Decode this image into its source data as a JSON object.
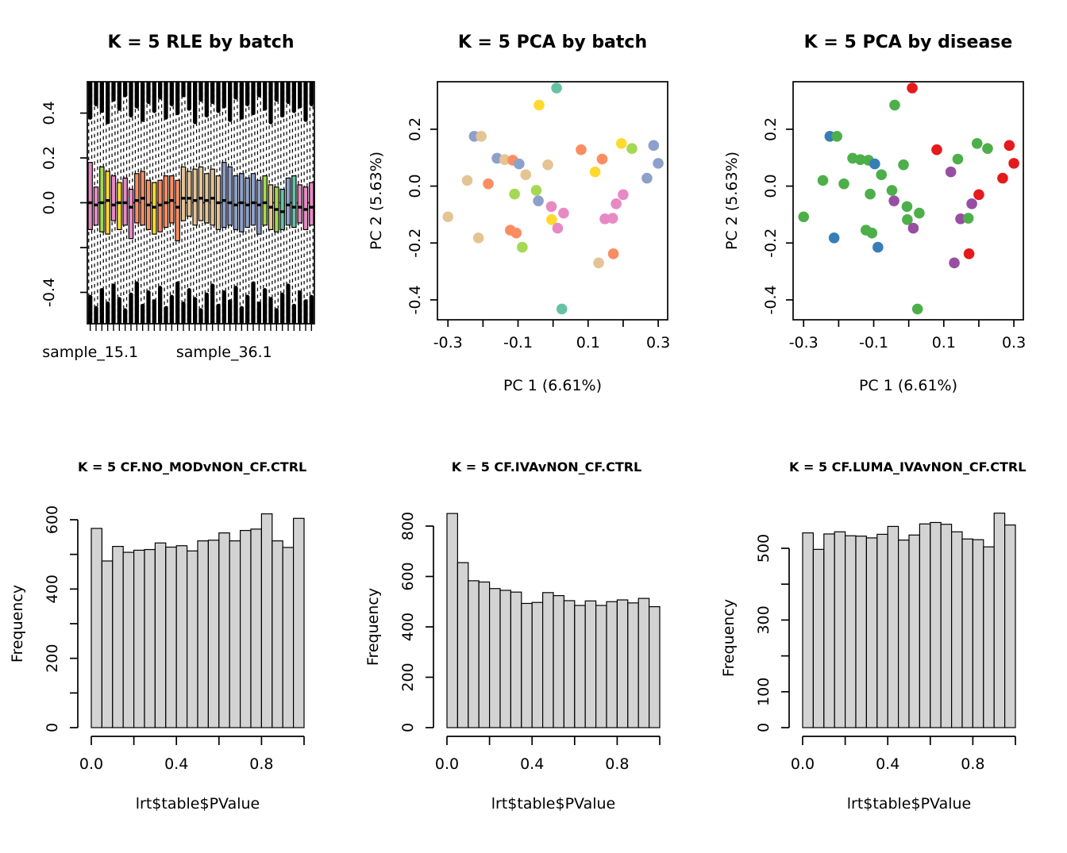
{
  "palette": {
    "set2": {
      "teal": "#66C2A5",
      "orange": "#FC8D62",
      "blue": "#8DA0CB",
      "pink": "#E78AC3",
      "yellowgreen": "#A6D854",
      "yellow": "#FFD92F",
      "tan": "#E5C494"
    },
    "set1": {
      "red": "#E41A1C",
      "blue": "#377EB8",
      "green": "#4DAF4A",
      "purple": "#984EA3"
    },
    "hist_fill": "#D3D3D3",
    "stroke": "#000000",
    "background": "#FFFFFF"
  },
  "pca_points": [
    {
      "x": 0.01,
      "y": 0.345,
      "batch": "teal",
      "disease": "red"
    },
    {
      "x": -0.04,
      "y": 0.285,
      "batch": "yellow",
      "disease": "green"
    },
    {
      "x": -0.225,
      "y": 0.175,
      "batch": "blue",
      "disease": "blue"
    },
    {
      "x": -0.205,
      "y": 0.175,
      "batch": "tan",
      "disease": "green"
    },
    {
      "x": 0.08,
      "y": 0.128,
      "batch": "orange",
      "disease": "red"
    },
    {
      "x": 0.195,
      "y": 0.15,
      "batch": "yellow",
      "disease": "green"
    },
    {
      "x": 0.225,
      "y": 0.132,
      "batch": "yellowgreen",
      "disease": "green"
    },
    {
      "x": 0.287,
      "y": 0.143,
      "batch": "blue",
      "disease": "red"
    },
    {
      "x": -0.16,
      "y": 0.098,
      "batch": "blue",
      "disease": "green"
    },
    {
      "x": -0.138,
      "y": 0.093,
      "batch": "tan",
      "disease": "green"
    },
    {
      "x": -0.115,
      "y": 0.091,
      "batch": "orange",
      "disease": "green"
    },
    {
      "x": -0.097,
      "y": 0.078,
      "batch": "blue",
      "disease": "blue"
    },
    {
      "x": -0.015,
      "y": 0.075,
      "batch": "tan",
      "disease": "green"
    },
    {
      "x": 0.14,
      "y": 0.095,
      "batch": "orange",
      "disease": "green"
    },
    {
      "x": 0.3,
      "y": 0.08,
      "batch": "blue",
      "disease": "red"
    },
    {
      "x": -0.078,
      "y": 0.04,
      "batch": "tan",
      "disease": "green"
    },
    {
      "x": 0.12,
      "y": 0.05,
      "batch": "yellow",
      "disease": "purple"
    },
    {
      "x": 0.268,
      "y": 0.028,
      "batch": "blue",
      "disease": "red"
    },
    {
      "x": -0.245,
      "y": 0.02,
      "batch": "tan",
      "disease": "green"
    },
    {
      "x": -0.185,
      "y": 0.008,
      "batch": "orange",
      "disease": "green"
    },
    {
      "x": -0.11,
      "y": -0.028,
      "batch": "yellowgreen",
      "disease": "green"
    },
    {
      "x": -0.048,
      "y": -0.015,
      "batch": "yellowgreen",
      "disease": "green"
    },
    {
      "x": -0.042,
      "y": -0.052,
      "batch": "blue",
      "disease": "purple"
    },
    {
      "x": 0.2,
      "y": -0.03,
      "batch": "pink",
      "disease": "red"
    },
    {
      "x": -0.005,
      "y": -0.072,
      "batch": "pink",
      "disease": "green"
    },
    {
      "x": 0.18,
      "y": -0.062,
      "batch": "pink",
      "disease": "purple"
    },
    {
      "x": 0.03,
      "y": -0.095,
      "batch": "pink",
      "disease": "green"
    },
    {
      "x": -0.3,
      "y": -0.108,
      "batch": "tan",
      "disease": "green"
    },
    {
      "x": -0.004,
      "y": -0.118,
      "batch": "yellow",
      "disease": "green"
    },
    {
      "x": 0.148,
      "y": -0.115,
      "batch": "pink",
      "disease": "purple"
    },
    {
      "x": 0.17,
      "y": -0.113,
      "batch": "pink",
      "disease": "green"
    },
    {
      "x": 0.013,
      "y": -0.148,
      "batch": "pink",
      "disease": "purple"
    },
    {
      "x": -0.122,
      "y": -0.155,
      "batch": "orange",
      "disease": "green"
    },
    {
      "x": -0.105,
      "y": -0.165,
      "batch": "orange",
      "disease": "green"
    },
    {
      "x": -0.213,
      "y": -0.182,
      "batch": "tan",
      "disease": "blue"
    },
    {
      "x": -0.088,
      "y": -0.215,
      "batch": "yellowgreen",
      "disease": "blue"
    },
    {
      "x": 0.172,
      "y": -0.238,
      "batch": "orange",
      "disease": "red"
    },
    {
      "x": 0.13,
      "y": -0.27,
      "batch": "tan",
      "disease": "purple"
    },
    {
      "x": 0.025,
      "y": -0.432,
      "batch": "teal",
      "disease": "green"
    }
  ],
  "chart_data": [
    {
      "id": "rle_batch",
      "type": "boxplot",
      "title": "K = 5 RLE by batch",
      "ylim": [
        -0.54,
        0.54
      ],
      "hline": 0,
      "yticks": [
        {
          "v": 0.4,
          "label": "0.4"
        },
        {
          "v": 0.2,
          "label": "0.2"
        },
        {
          "v": 0.0,
          "label": "0.0"
        },
        {
          "v": -0.2,
          "label": ""
        },
        {
          "v": -0.4,
          "label": "-0.4"
        }
      ],
      "x_labels": [
        {
          "at": 0,
          "label": "sample_15.1"
        },
        {
          "at": 23,
          "label": "sample_36.1"
        }
      ],
      "boxes": [
        {
          "c": "pink",
          "m": 0.0,
          "q1": -0.12,
          "q3": 0.18,
          "ct": 0.16,
          "cb": 0.12
        },
        {
          "c": "pink",
          "m": -0.01,
          "q1": -0.1,
          "q3": 0.07,
          "ct": 0.1,
          "cb": 0.07
        },
        {
          "c": "yellowgreen",
          "m": 0.0,
          "q1": -0.13,
          "q3": 0.16,
          "ct": 0.13,
          "cb": 0.15
        },
        {
          "c": "yellow",
          "m": 0.01,
          "q1": -0.14,
          "q3": 0.14,
          "ct": 0.18,
          "cb": 0.09
        },
        {
          "c": "pink",
          "m": -0.01,
          "q1": -0.08,
          "q3": 0.12,
          "ct": 0.08,
          "cb": 0.17
        },
        {
          "c": "yellow",
          "m": 0.0,
          "q1": -0.12,
          "q3": 0.09,
          "ct": 0.12,
          "cb": 0.11
        },
        {
          "c": "pink",
          "m": 0.0,
          "q1": -0.1,
          "q3": 0.11,
          "ct": 0.06,
          "cb": 0.06
        },
        {
          "c": "pink",
          "m": -0.02,
          "q1": -0.16,
          "q3": 0.06,
          "ct": 0.15,
          "cb": 0.13
        },
        {
          "c": "orange",
          "m": 0.01,
          "q1": -0.09,
          "q3": 0.13,
          "ct": 0.11,
          "cb": 0.18
        },
        {
          "c": "orange",
          "m": 0.02,
          "q1": -0.1,
          "q3": 0.14,
          "ct": 0.17,
          "cb": 0.08
        },
        {
          "c": "orange",
          "m": -0.01,
          "q1": -0.12,
          "q3": 0.1,
          "ct": 0.09,
          "cb": 0.14
        },
        {
          "c": "yellow",
          "m": -0.02,
          "q1": -0.14,
          "q3": 0.09,
          "ct": 0.13,
          "cb": 0.1
        },
        {
          "c": "orange",
          "m": -0.01,
          "q1": -0.13,
          "q3": 0.1,
          "ct": 0.07,
          "cb": 0.16
        },
        {
          "c": "orange",
          "m": 0.0,
          "q1": -0.11,
          "q3": 0.12,
          "ct": 0.16,
          "cb": 0.07
        },
        {
          "c": "orange",
          "m": 0.01,
          "q1": -0.09,
          "q3": 0.12,
          "ct": 0.1,
          "cb": 0.12
        },
        {
          "c": "orange",
          "m": -0.02,
          "q1": -0.17,
          "q3": 0.1,
          "ct": 0.14,
          "cb": 0.18
        },
        {
          "c": "tan",
          "m": 0.02,
          "q1": -0.08,
          "q3": 0.16,
          "ct": 0.06,
          "cb": 0.09
        },
        {
          "c": "tan",
          "m": 0.02,
          "q1": -0.06,
          "q3": 0.14,
          "ct": 0.12,
          "cb": 0.15
        },
        {
          "c": "tan",
          "m": 0.01,
          "q1": -0.1,
          "q3": 0.15,
          "ct": 0.18,
          "cb": 0.11
        },
        {
          "c": "tan",
          "m": 0.02,
          "q1": -0.08,
          "q3": 0.16,
          "ct": 0.08,
          "cb": 0.06
        },
        {
          "c": "tan",
          "m": 0.01,
          "q1": -0.09,
          "q3": 0.13,
          "ct": 0.15,
          "cb": 0.13
        },
        {
          "c": "tan",
          "m": 0.02,
          "q1": -0.1,
          "q3": 0.15,
          "ct": 0.09,
          "cb": 0.17
        },
        {
          "c": "tan",
          "m": 0.0,
          "q1": -0.12,
          "q3": 0.12,
          "ct": 0.13,
          "cb": 0.08
        },
        {
          "c": "blue",
          "m": 0.01,
          "q1": -0.11,
          "q3": 0.18,
          "ct": 0.11,
          "cb": 0.14
        },
        {
          "c": "blue",
          "m": 0.0,
          "q1": -0.1,
          "q3": 0.16,
          "ct": 0.17,
          "cb": 0.1
        },
        {
          "c": "blue",
          "m": -0.01,
          "q1": -0.12,
          "q3": 0.12,
          "ct": 0.07,
          "cb": 0.16
        },
        {
          "c": "blue",
          "m": 0.0,
          "q1": -0.13,
          "q3": 0.13,
          "ct": 0.16,
          "cb": 0.07
        },
        {
          "c": "blue",
          "m": -0.01,
          "q1": -0.11,
          "q3": 0.11,
          "ct": 0.1,
          "cb": 0.12
        },
        {
          "c": "blue",
          "m": 0.0,
          "q1": -0.1,
          "q3": 0.13,
          "ct": 0.14,
          "cb": 0.18
        },
        {
          "c": "blue",
          "m": -0.01,
          "q1": -0.14,
          "q3": 0.1,
          "ct": 0.06,
          "cb": 0.09
        },
        {
          "c": "yellowgreen",
          "m": 0.0,
          "q1": -0.1,
          "q3": 0.12,
          "ct": 0.12,
          "cb": 0.15
        },
        {
          "c": "tan",
          "m": -0.02,
          "q1": -0.12,
          "q3": 0.08,
          "ct": 0.18,
          "cb": 0.11
        },
        {
          "c": "yellowgreen",
          "m": -0.03,
          "q1": -0.13,
          "q3": 0.07,
          "ct": 0.08,
          "cb": 0.06
        },
        {
          "c": "teal",
          "m": -0.04,
          "q1": -0.12,
          "q3": 0.06,
          "ct": 0.15,
          "cb": 0.13
        },
        {
          "c": "blue",
          "m": -0.01,
          "q1": -0.1,
          "q3": 0.11,
          "ct": 0.09,
          "cb": 0.17
        },
        {
          "c": "teal",
          "m": -0.02,
          "q1": -0.11,
          "q3": 0.12,
          "ct": 0.13,
          "cb": 0.08
        },
        {
          "c": "pink",
          "m": -0.02,
          "q1": -0.09,
          "q3": 0.08,
          "ct": 0.11,
          "cb": 0.14
        },
        {
          "c": "pink",
          "m": -0.03,
          "q1": -0.12,
          "q3": 0.07,
          "ct": 0.17,
          "cb": 0.1
        },
        {
          "c": "pink",
          "m": -0.02,
          "q1": -0.1,
          "q3": 0.09,
          "ct": 0.1,
          "cb": 0.12
        }
      ]
    },
    {
      "id": "pca_batch",
      "type": "scatter",
      "title": "K = 5 PCA by batch",
      "xlabel": "PC 1 (6.61%)",
      "ylabel": "PC 2 (5.63%)",
      "xlim": [
        -0.33,
        0.327
      ],
      "ylim": [
        -0.47,
        0.367
      ],
      "color_by": "batch",
      "xticks": [
        {
          "v": -0.3,
          "label": "-0.3"
        },
        {
          "v": -0.2,
          "label": ""
        },
        {
          "v": -0.1,
          "label": "-0.1"
        },
        {
          "v": 0.0,
          "label": ""
        },
        {
          "v": 0.1,
          "label": "0.1"
        },
        {
          "v": 0.2,
          "label": ""
        },
        {
          "v": 0.3,
          "label": "0.3"
        }
      ],
      "yticks": [
        {
          "v": 0.2,
          "label": "0.2"
        },
        {
          "v": 0.0,
          "label": "0.0"
        },
        {
          "v": -0.2,
          "label": "-0.2"
        },
        {
          "v": -0.4,
          "label": "-0.4"
        }
      ]
    },
    {
      "id": "pca_disease",
      "type": "scatter",
      "title": "K = 5 PCA by disease",
      "xlabel": "PC 1 (6.61%)",
      "ylabel": "PC 2 (5.63%)",
      "xlim": [
        -0.33,
        0.327
      ],
      "ylim": [
        -0.47,
        0.367
      ],
      "color_by": "disease",
      "xticks": [
        {
          "v": -0.3,
          "label": "-0.3"
        },
        {
          "v": -0.2,
          "label": ""
        },
        {
          "v": -0.1,
          "label": "-0.1"
        },
        {
          "v": 0.0,
          "label": ""
        },
        {
          "v": 0.1,
          "label": "0.1"
        },
        {
          "v": 0.2,
          "label": ""
        },
        {
          "v": 0.3,
          "label": "0.3"
        }
      ],
      "yticks": [
        {
          "v": 0.2,
          "label": "0.2"
        },
        {
          "v": 0.0,
          "label": "0.0"
        },
        {
          "v": -0.2,
          "label": "-0.2"
        },
        {
          "v": -0.4,
          "label": "-0.4"
        }
      ]
    },
    {
      "id": "hist_no_mod",
      "type": "histogram",
      "title": "K = 5 CF.NO_MODvNON_CF.CTRL",
      "xlabel": "lrt$table$PValue",
      "ylabel": "Frequency",
      "bin_start": 0,
      "bin_width": 0.05,
      "counts": [
        575,
        481,
        523,
        506,
        512,
        514,
        533,
        521,
        525,
        510,
        539,
        541,
        562,
        539,
        569,
        573,
        617,
        539,
        520,
        604
      ],
      "yticks": [
        {
          "v": 0,
          "label": "0"
        },
        {
          "v": 100,
          "label": ""
        },
        {
          "v": 200,
          "label": "200"
        },
        {
          "v": 300,
          "label": ""
        },
        {
          "v": 400,
          "label": "400"
        },
        {
          "v": 500,
          "label": ""
        },
        {
          "v": 600,
          "label": "600"
        }
      ],
      "xticks": [
        {
          "v": 0,
          "label": "0.0"
        },
        {
          "v": 0.2,
          "label": ""
        },
        {
          "v": 0.4,
          "label": "0.4"
        },
        {
          "v": 0.6,
          "label": ""
        },
        {
          "v": 0.8,
          "label": "0.8"
        },
        {
          "v": 1,
          "label": ""
        }
      ]
    },
    {
      "id": "hist_iva",
      "type": "histogram",
      "title": "K = 5 CF.IVAvNON_CF.CTRL",
      "xlabel": "lrt$table$PValue",
      "ylabel": "Frequency",
      "bin_start": 0,
      "bin_width": 0.05,
      "counts": [
        850,
        655,
        583,
        578,
        552,
        545,
        538,
        493,
        497,
        536,
        524,
        504,
        485,
        503,
        485,
        500,
        507,
        495,
        513,
        480
      ],
      "yticks": [
        {
          "v": 0,
          "label": "0"
        },
        {
          "v": 200,
          "label": "200"
        },
        {
          "v": 400,
          "label": "400"
        },
        {
          "v": 600,
          "label": "600"
        },
        {
          "v": 800,
          "label": "800"
        }
      ],
      "xticks": [
        {
          "v": 0,
          "label": "0.0"
        },
        {
          "v": 0.2,
          "label": ""
        },
        {
          "v": 0.4,
          "label": "0.4"
        },
        {
          "v": 0.6,
          "label": ""
        },
        {
          "v": 0.8,
          "label": "0.8"
        },
        {
          "v": 1,
          "label": ""
        }
      ]
    },
    {
      "id": "hist_luma",
      "type": "histogram",
      "title": "K = 5 CF.LUMA_IVAvNON_CF.CTRL",
      "xlabel": "lrt$table$PValue",
      "ylabel": "Frequency",
      "bin_start": 0,
      "bin_width": 0.05,
      "counts": [
        543,
        497,
        540,
        546,
        535,
        534,
        529,
        539,
        561,
        523,
        537,
        568,
        572,
        567,
        546,
        526,
        524,
        504,
        598,
        565
      ],
      "yticks": [
        {
          "v": 0,
          "label": "0"
        },
        {
          "v": 100,
          "label": "100"
        },
        {
          "v": 200,
          "label": ""
        },
        {
          "v": 300,
          "label": "300"
        },
        {
          "v": 400,
          "label": ""
        },
        {
          "v": 500,
          "label": "500"
        }
      ],
      "xticks": [
        {
          "v": 0,
          "label": "0.0"
        },
        {
          "v": 0.2,
          "label": ""
        },
        {
          "v": 0.4,
          "label": "0.4"
        },
        {
          "v": 0.6,
          "label": ""
        },
        {
          "v": 0.8,
          "label": "0.8"
        },
        {
          "v": 1,
          "label": ""
        }
      ]
    }
  ]
}
